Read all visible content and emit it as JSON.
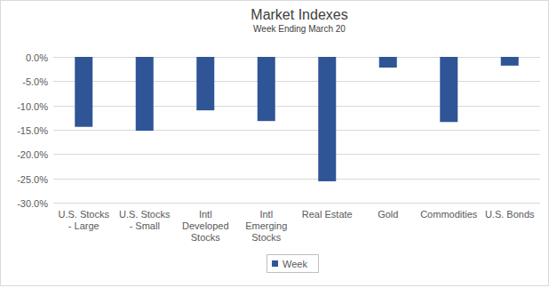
{
  "chart_data": {
    "type": "bar",
    "title": "Market Indexes",
    "subtitle": "Week Ending March 20",
    "categories": [
      "U.S. Stocks - Large",
      "U.S. Stocks - Small",
      "Intl Developed Stocks",
      "Intl Emerging Stocks",
      "Real Estate",
      "Gold",
      "Commodities",
      "U.S. Bonds"
    ],
    "series": [
      {
        "name": "Week",
        "color": "#2f5597",
        "values": [
          -14.4,
          -15.2,
          -11.0,
          -13.2,
          -25.6,
          -2.2,
          -13.4,
          -1.8
        ]
      }
    ],
    "ylim": [
      -30,
      0
    ],
    "yticks": [
      {
        "value": -30,
        "label": "-30.0%"
      },
      {
        "value": -25,
        "label": "-25.0%"
      },
      {
        "value": -20,
        "label": "-20.0%"
      },
      {
        "value": -15,
        "label": "-15.0%"
      },
      {
        "value": -10,
        "label": "-10.0%"
      },
      {
        "value": -5,
        "label": "-5.0%"
      },
      {
        "value": 0,
        "label": "0.0%"
      }
    ],
    "grid": true,
    "legend": "bottom",
    "data_labels": false
  }
}
